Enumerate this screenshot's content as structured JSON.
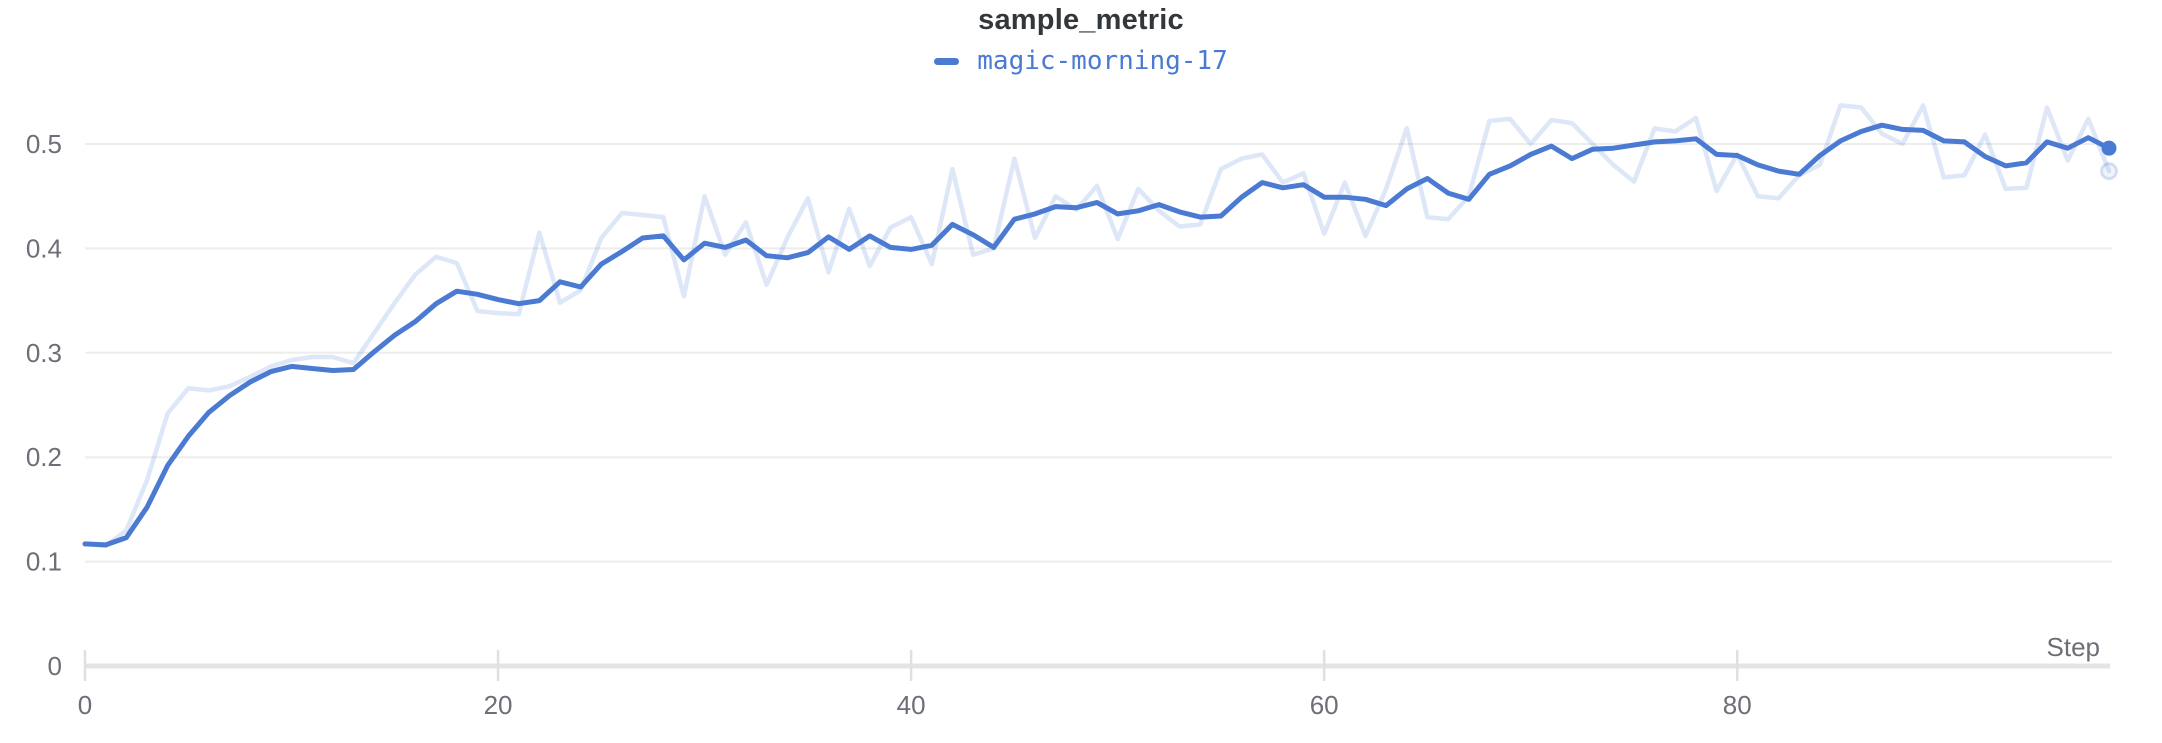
{
  "page": {
    "background": "#ffffff"
  },
  "header": {
    "title": "sample_metric"
  },
  "legend": {
    "series_label": "magic-morning-17",
    "swatch_color": "#4a7ad2"
  },
  "colors": {
    "accent_blue": "#4a7ad2",
    "raw_line_blue": "#dde6f7",
    "gridline": "#ededee",
    "axis_bar": "#e4e4e4",
    "tick_mark": "#e0e0e3",
    "tick_label": "#6e6e78",
    "title_text": "#32373b"
  },
  "chart_data": {
    "type": "line",
    "title": "sample_metric",
    "xlabel": "Step",
    "ylabel": "",
    "legend_position": "top-center",
    "grid": "horizontal",
    "xlim": [
      0,
      98.5
    ],
    "ylim": [
      0,
      0.557
    ],
    "x_tick_values": [
      0,
      20,
      40,
      60,
      80
    ],
    "x_tick_labels": [
      "0",
      "20",
      "40",
      "60",
      "80"
    ],
    "y_tick_values": [
      0,
      0.1,
      0.2,
      0.3,
      0.4,
      0.5
    ],
    "y_tick_labels": [
      "0",
      "0.1",
      "0.2",
      "0.3",
      "0.4",
      "0.5"
    ],
    "x_start": 0,
    "x_step": 1,
    "series": [
      {
        "name": "magic-morning-17 (original)",
        "role": "raw",
        "color": "#4a7ad2",
        "opacity": 0.18,
        "values": [
          0.117,
          0.115,
          0.13,
          0.178,
          0.242,
          0.266,
          0.264,
          0.268,
          0.277,
          0.287,
          0.293,
          0.296,
          0.296,
          0.29,
          0.319,
          0.348,
          0.375,
          0.392,
          0.386,
          0.34,
          0.338,
          0.337,
          0.415,
          0.348,
          0.36,
          0.41,
          0.434,
          0.432,
          0.43,
          0.354,
          0.45,
          0.394,
          0.425,
          0.365,
          0.41,
          0.448,
          0.377,
          0.438,
          0.383,
          0.42,
          0.43,
          0.385,
          0.476,
          0.394,
          0.4,
          0.486,
          0.41,
          0.45,
          0.437,
          0.46,
          0.409,
          0.457,
          0.436,
          0.421,
          0.423,
          0.476,
          0.486,
          0.49,
          0.463,
          0.472,
          0.414,
          0.463,
          0.412,
          0.457,
          0.515,
          0.43,
          0.428,
          0.45,
          0.522,
          0.524,
          0.5,
          0.523,
          0.52,
          0.5,
          0.48,
          0.464,
          0.515,
          0.512,
          0.525,
          0.455,
          0.49,
          0.45,
          0.448,
          0.47,
          0.48,
          0.537,
          0.535,
          0.51,
          0.5,
          0.537,
          0.468,
          0.47,
          0.509,
          0.457,
          0.458,
          0.535,
          0.484,
          0.524,
          0.474
        ]
      },
      {
        "name": "magic-morning-17",
        "role": "smoothed",
        "color": "#4a7ad2",
        "opacity": 1,
        "values": [
          0.117,
          0.116,
          0.123,
          0.152,
          0.192,
          0.22,
          0.243,
          0.259,
          0.272,
          0.282,
          0.287,
          0.285,
          0.283,
          0.284,
          0.301,
          0.317,
          0.33,
          0.347,
          0.359,
          0.356,
          0.351,
          0.347,
          0.35,
          0.368,
          0.363,
          0.385,
          0.397,
          0.41,
          0.412,
          0.389,
          0.405,
          0.401,
          0.408,
          0.393,
          0.391,
          0.396,
          0.411,
          0.399,
          0.412,
          0.401,
          0.399,
          0.403,
          0.423,
          0.413,
          0.401,
          0.428,
          0.433,
          0.44,
          0.439,
          0.444,
          0.433,
          0.436,
          0.442,
          0.435,
          0.43,
          0.431,
          0.449,
          0.463,
          0.458,
          0.461,
          0.449,
          0.449,
          0.447,
          0.441,
          0.457,
          0.467,
          0.453,
          0.447,
          0.471,
          0.479,
          0.49,
          0.498,
          0.486,
          0.495,
          0.496,
          0.499,
          0.502,
          0.503,
          0.505,
          0.49,
          0.489,
          0.48,
          0.474,
          0.471,
          0.489,
          0.503,
          0.512,
          0.518,
          0.514,
          0.513,
          0.503,
          0.502,
          0.488,
          0.479,
          0.482,
          0.502,
          0.496,
          0.506,
          0.496
        ]
      }
    ]
  }
}
